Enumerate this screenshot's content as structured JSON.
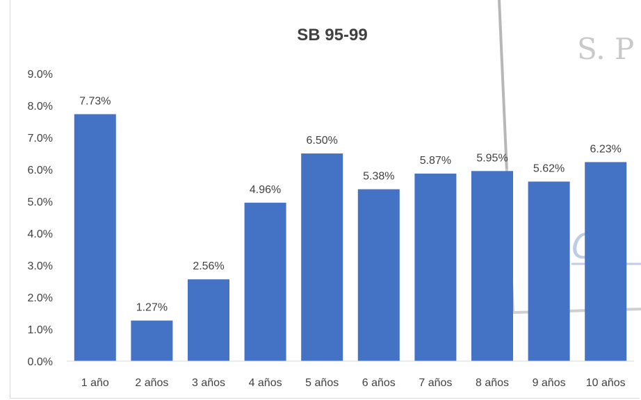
{
  "chart_data": {
    "type": "bar",
    "title": "SB 95-99",
    "categories": [
      "1 año",
      "2 años",
      "3 años",
      "4 años",
      "5 años",
      "6 años",
      "7 años",
      "8 años",
      "9 años",
      "10 años"
    ],
    "values": [
      7.73,
      1.27,
      2.56,
      4.96,
      6.5,
      5.38,
      5.87,
      5.95,
      5.62,
      6.23
    ],
    "data_labels": [
      "7.73%",
      "1.27%",
      "2.56%",
      "4.96%",
      "6.50%",
      "5.38%",
      "5.87%",
      "5.95%",
      "5.62%",
      "6.23%"
    ],
    "y_ticks": [
      "0.0%",
      "1.0%",
      "2.0%",
      "3.0%",
      "4.0%",
      "5.0%",
      "6.0%",
      "7.0%",
      "8.0%",
      "9.0%"
    ],
    "ylim": [
      0,
      9
    ],
    "grid": false,
    "legend": "none",
    "bar_color": "#4472C4",
    "xlabel": "",
    "ylabel": ""
  },
  "background_stamp": {
    "text_top": "S. P",
    "text_mid": "CO"
  }
}
